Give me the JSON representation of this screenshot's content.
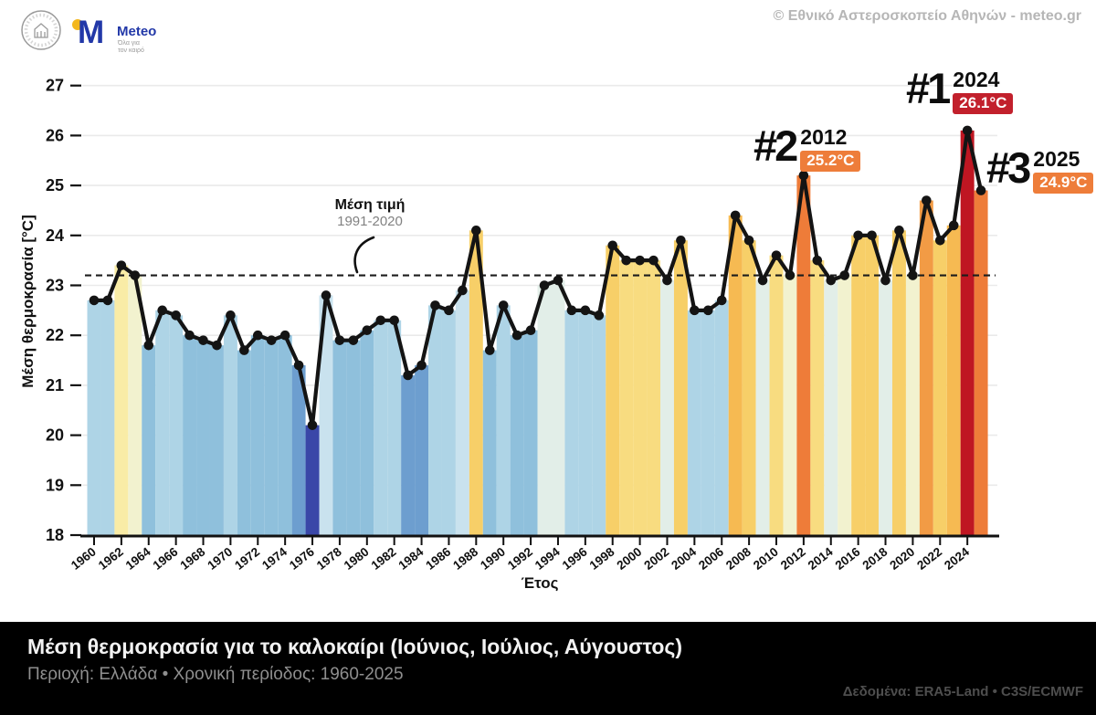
{
  "header": {
    "copyright": "© Εθνικό Αστεροσκοπείο Αθηνών - meteo.gr",
    "logo": {
      "m_glyph": "M",
      "name": "Meteo",
      "tagline_line1": "Όλα για",
      "tagline_line2": "τον καιρό"
    }
  },
  "chart_data": {
    "type": "bar",
    "title": "Μέση θερμοκρασία για το καλοκαίρι (Ιούνιος, Ιούλιος, Αύγουστος)",
    "xlabel": "Έτος",
    "ylabel": "Μέση θερμοκρασία [°C]",
    "ylim": [
      18,
      27
    ],
    "grid": true,
    "legend": false,
    "yticks": [
      18,
      19,
      20,
      21,
      22,
      23,
      24,
      25,
      26,
      27
    ],
    "xticks": [
      1960,
      1962,
      1964,
      1966,
      1968,
      1970,
      1972,
      1974,
      1976,
      1978,
      1980,
      1982,
      1984,
      1986,
      1988,
      1990,
      1992,
      1994,
      1996,
      1998,
      2000,
      2002,
      2004,
      2006,
      2008,
      2010,
      2012,
      2014,
      2016,
      2018,
      2020,
      2022,
      2024
    ],
    "x": [
      1960,
      1961,
      1962,
      1963,
      1964,
      1965,
      1966,
      1967,
      1968,
      1969,
      1970,
      1971,
      1972,
      1973,
      1974,
      1975,
      1976,
      1977,
      1978,
      1979,
      1980,
      1981,
      1982,
      1983,
      1984,
      1985,
      1986,
      1987,
      1988,
      1989,
      1990,
      1991,
      1992,
      1993,
      1994,
      1995,
      1996,
      1997,
      1998,
      1999,
      2000,
      2001,
      2002,
      2003,
      2004,
      2005,
      2006,
      2007,
      2008,
      2009,
      2010,
      2011,
      2012,
      2013,
      2014,
      2015,
      2016,
      2017,
      2018,
      2019,
      2020,
      2021,
      2022,
      2023,
      2024,
      2025
    ],
    "values": [
      22.7,
      22.7,
      23.4,
      23.2,
      21.8,
      22.5,
      22.4,
      22.0,
      21.9,
      21.8,
      22.4,
      21.7,
      22.0,
      21.9,
      22.0,
      21.4,
      20.2,
      22.8,
      21.9,
      21.9,
      22.1,
      22.3,
      22.3,
      21.2,
      21.4,
      22.6,
      22.5,
      22.9,
      24.1,
      21.7,
      22.6,
      22.0,
      22.1,
      23.0,
      23.1,
      22.5,
      22.5,
      22.4,
      23.8,
      23.5,
      23.5,
      23.5,
      23.1,
      23.9,
      22.5,
      22.5,
      22.7,
      24.4,
      23.9,
      23.1,
      23.6,
      23.2,
      25.2,
      23.5,
      23.1,
      23.2,
      24.0,
      24.0,
      23.1,
      24.1,
      23.2,
      24.7,
      23.9,
      24.2,
      26.1,
      24.9
    ],
    "mean_line": {
      "value": 23.2,
      "label": "Μέση τιμή",
      "sublabel": "1991-2020"
    },
    "annotations": [
      {
        "rank": "#1",
        "year": "2024",
        "value_label": "26.1°C",
        "badge_color": "#c2202c"
      },
      {
        "rank": "#2",
        "year": "2012",
        "value_label": "25.2°C",
        "badge_color": "#ee7d3a"
      },
      {
        "rank": "#3",
        "year": "2025",
        "value_label": "24.9°C",
        "badge_color": "#ee7d3a"
      }
    ],
    "colormap": [
      {
        "max": -2.5,
        "color": "#3a47a8"
      },
      {
        "max": -1.7,
        "color": "#6d9ecf"
      },
      {
        "max": -1.05,
        "color": "#8fc0dc"
      },
      {
        "max": -0.45,
        "color": "#aed4e6"
      },
      {
        "max": -0.28,
        "color": "#c9e2ee"
      },
      {
        "max": -0.07,
        "color": "#e2eee8"
      },
      {
        "max": 0.13,
        "color": "#f2f2cf"
      },
      {
        "max": 0.27,
        "color": "#f9eca6"
      },
      {
        "max": 0.55,
        "color": "#f8dc80"
      },
      {
        "max": 0.95,
        "color": "#f7cf68"
      },
      {
        "max": 1.3,
        "color": "#f6ba52"
      },
      {
        "max": 1.62,
        "color": "#f29b45"
      },
      {
        "max": 2.4,
        "color": "#ee7c39"
      },
      {
        "max": 99,
        "color": "#bf1622"
      }
    ],
    "line_color": "#141414",
    "gridline_color": "#eaeaea"
  },
  "footer": {
    "title": "Μέση θερμοκρασία για το καλοκαίρι (Ιούνιος, Ιούλιος, Αύγουστος)",
    "subtitle": "Περιοχή: Ελλάδα • Χρονική περίοδος: 1960-2025",
    "source": "Δεδομένα: ERA5-Land • C3S/ECMWF"
  }
}
